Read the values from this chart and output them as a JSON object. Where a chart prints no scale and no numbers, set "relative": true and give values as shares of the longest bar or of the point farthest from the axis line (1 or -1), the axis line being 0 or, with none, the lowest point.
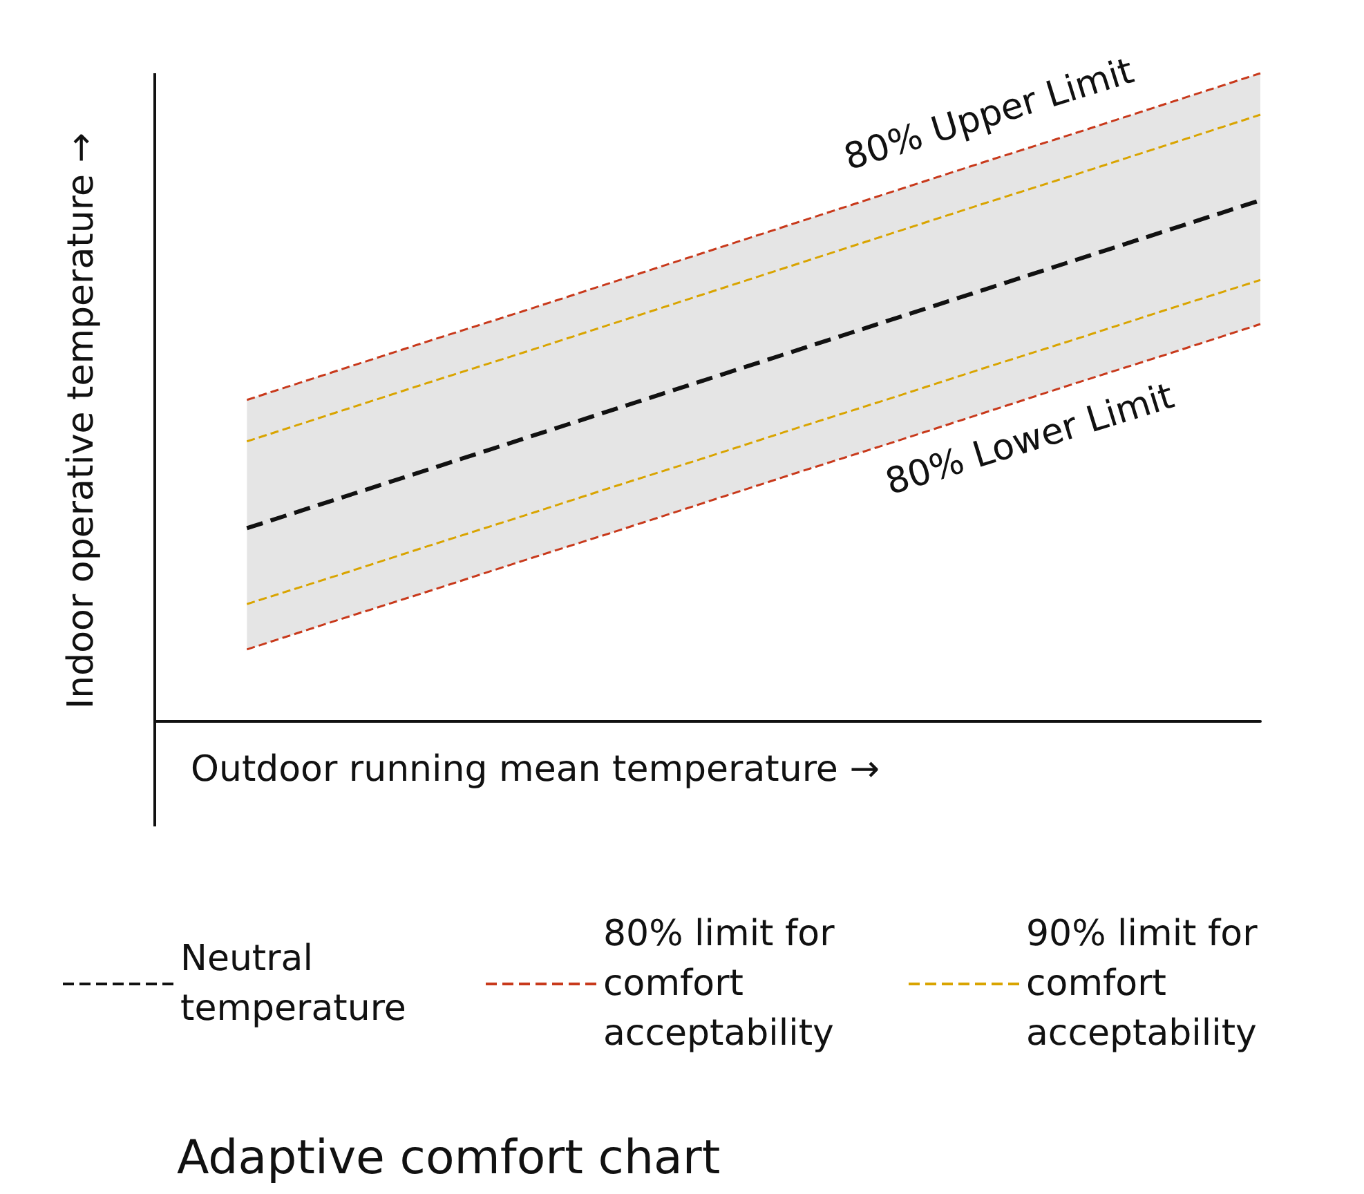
{
  "chart_data": {
    "type": "line",
    "relative": true,
    "title": "Adaptive comfort chart",
    "xlabel": "Outdoor running mean temperature →",
    "ylabel": "Indoor operative temperature →",
    "categories": [
      null,
      null,
      null,
      null,
      null,
      null,
      null,
      null,
      null,
      null,
      null,
      null,
      null
    ],
    "series": [
      {
        "name": "Neutral temperature",
        "color": "#111111",
        "values": [
          null,
          0.298,
          0.344,
          0.39,
          0.436,
          0.482,
          0.528,
          0.574,
          0.62,
          0.666,
          0.712,
          0.758,
          0.804
        ],
        "lower": [
          null,
          0.111,
          0.157,
          0.202,
          0.248,
          0.293,
          0.339,
          0.385,
          0.43,
          0.476,
          0.522,
          0.567,
          0.613
        ],
        "upper": [
          null,
          0.496,
          0.542,
          0.588,
          0.633,
          0.679,
          0.725,
          0.771,
          0.817,
          0.863,
          0.908,
          0.954,
          1
        ]
      },
      {
        "name": "80% limit for comfort acceptability",
        "color": "#c8391b",
        "values": [
          null,
          0.496,
          0.542,
          0.588,
          0.633,
          0.679,
          0.725,
          0.771,
          0.817,
          0.863,
          0.908,
          0.954,
          1
        ]
      },
      {
        "color": "#c8391b",
        "values": [
          null,
          0.111,
          0.157,
          0.202,
          0.248,
          0.293,
          0.339,
          0.385,
          0.43,
          0.476,
          0.522,
          0.567,
          0.613
        ]
      },
      {
        "name": "90% limit for comfort acceptability",
        "color": "#d9a400",
        "values": [
          null,
          0.432,
          0.478,
          0.524,
          0.569,
          0.615,
          0.661,
          0.707,
          0.753,
          0.799,
          0.844,
          0.89,
          0.936
        ]
      },
      {
        "color": "#d9a400",
        "values": [
          null,
          0.181,
          0.226,
          0.272,
          0.317,
          0.363,
          0.408,
          0.454,
          0.499,
          0.545,
          0.59,
          0.636,
          0.681
        ]
      }
    ],
    "annotations": [
      "80% Upper Limit",
      "80% Lower Limit"
    ],
    "legend": "bottom",
    "marker": "none",
    "line_style": "dashed",
    "grid": false
  }
}
